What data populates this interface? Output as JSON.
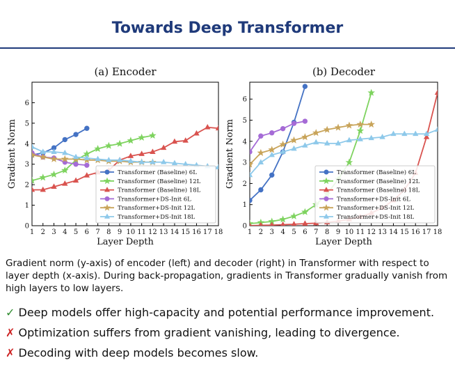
{
  "slide": {
    "title": "Towards Deep Transformer",
    "caption": "Gradient norm (y-axis) of encoder (left) and decoder (right) in Transformer with respect to layer depth (x-axis). During back-propagation, gradients in Transformer gradually vanish from high layers to low layers.",
    "bullets": [
      {
        "mark": "✓",
        "kind": "ok",
        "text": "Deep models offer high-capacity and potential performance improvement."
      },
      {
        "mark": "✗",
        "kind": "bad",
        "text": "Optimization suffers from gradient vanishing, leading to divergence."
      },
      {
        "mark": "✗",
        "kind": "bad",
        "text": "Decoding with deep models becomes slow."
      }
    ]
  },
  "colors": {
    "title": "#1f3a7a",
    "blue": "#4472c4",
    "green": "#7ed35f",
    "red": "#d9534f",
    "purple": "#a56bd6",
    "tan": "#c8a45a",
    "lightblue": "#8ec9ea"
  },
  "chart_data": [
    {
      "type": "line",
      "title": "(a) Encoder",
      "xlabel": "Layer Depth",
      "ylabel": "Gradient Norm",
      "xlim": [
        1,
        18
      ],
      "ylim": [
        0,
        7
      ],
      "xticks": [
        1,
        2,
        3,
        4,
        5,
        6,
        7,
        8,
        9,
        10,
        11,
        12,
        13,
        14,
        15,
        16,
        17,
        18
      ],
      "yticks": [
        0,
        1,
        2,
        3,
        4,
        5,
        6
      ],
      "legend_position": "lower-right",
      "series": [
        {
          "name": "Transformer (Baseline) 6L",
          "color": "#4472c4",
          "marker": "circle",
          "x": [
            1,
            2,
            3,
            4,
            5,
            6
          ],
          "values": [
            3.45,
            3.55,
            3.8,
            4.2,
            4.45,
            4.75
          ]
        },
        {
          "name": "Transformer (Baseline) 12L",
          "color": "#7ed35f",
          "marker": "star",
          "x": [
            1,
            2,
            3,
            4,
            5,
            6,
            7,
            8,
            9,
            10,
            11,
            12
          ],
          "values": [
            2.2,
            2.35,
            2.5,
            2.7,
            3.2,
            3.5,
            3.75,
            3.9,
            4.0,
            4.15,
            4.3,
            4.4
          ]
        },
        {
          "name": "Transformer (Baseline) 18L",
          "color": "#d9534f",
          "marker": "triangle",
          "x": [
            1,
            2,
            3,
            4,
            5,
            6,
            7,
            8,
            9,
            10,
            11,
            12,
            13,
            14,
            15,
            16,
            17,
            18
          ],
          "values": [
            1.75,
            1.75,
            1.9,
            2.05,
            2.2,
            2.45,
            2.6,
            2.7,
            3.2,
            3.4,
            3.5,
            3.6,
            3.8,
            4.1,
            4.15,
            4.5,
            4.8,
            4.75
          ]
        },
        {
          "name": "Transformer+DS-Init 6L",
          "color": "#a56bd6",
          "marker": "circle",
          "x": [
            1,
            2,
            3,
            4,
            5,
            6
          ],
          "values": [
            3.55,
            3.35,
            3.3,
            3.1,
            3.0,
            2.95
          ]
        },
        {
          "name": "Transformer+DS-Init 12L",
          "color": "#c8a45a",
          "marker": "star",
          "x": [
            1,
            2,
            3,
            4,
            5,
            6,
            7,
            8,
            9,
            10,
            11,
            12
          ],
          "values": [
            3.45,
            3.35,
            3.25,
            3.25,
            3.25,
            3.2,
            3.2,
            3.15,
            3.15,
            3.1,
            3.1,
            3.1
          ]
        },
        {
          "name": "Transformer+DS-Init 18L",
          "color": "#8ec9ea",
          "marker": "triangle",
          "x": [
            1,
            2,
            3,
            4,
            5,
            6,
            7,
            8,
            9,
            10,
            11,
            12,
            13,
            14,
            15,
            16,
            17,
            18
          ],
          "values": [
            3.85,
            3.6,
            3.6,
            3.55,
            3.35,
            3.3,
            3.25,
            3.2,
            3.2,
            3.15,
            3.1,
            3.1,
            3.1,
            3.05,
            3.0,
            2.95,
            2.9,
            2.85
          ]
        }
      ]
    },
    {
      "type": "line",
      "title": "(b) Decoder",
      "xlabel": "Layer Depth",
      "ylabel": "Gradient Norm",
      "xlim": [
        1,
        18
      ],
      "ylim": [
        0,
        6.8
      ],
      "xticks": [
        1,
        2,
        3,
        4,
        5,
        6,
        7,
        8,
        9,
        10,
        11,
        12,
        13,
        14,
        15,
        16,
        17,
        18
      ],
      "yticks": [
        0,
        1,
        2,
        3,
        4,
        5,
        6
      ],
      "legend_position": "lower-right",
      "series": [
        {
          "name": "Transformer (Baseline) 6L",
          "color": "#4472c4",
          "marker": "circle",
          "x": [
            1,
            2,
            3,
            4,
            5,
            6
          ],
          "values": [
            1.2,
            1.7,
            2.4,
            3.5,
            4.9,
            6.6
          ]
        },
        {
          "name": "Transformer (Baseline) 12L",
          "color": "#7ed35f",
          "marker": "star",
          "x": [
            1,
            2,
            3,
            4,
            5,
            6,
            7,
            8,
            9,
            10,
            11,
            12
          ],
          "values": [
            0.1,
            0.15,
            0.2,
            0.3,
            0.45,
            0.65,
            1.0,
            1.5,
            2.2,
            3.0,
            4.5,
            6.3
          ]
        },
        {
          "name": "Transformer (Baseline) 18L",
          "color": "#d9534f",
          "marker": "triangle",
          "x": [
            1,
            2,
            3,
            4,
            5,
            6,
            7,
            8,
            9,
            10,
            11,
            12,
            13,
            14,
            15,
            16,
            17,
            18
          ],
          "values": [
            0.0,
            0.02,
            0.03,
            0.05,
            0.07,
            0.1,
            0.12,
            0.16,
            0.22,
            0.3,
            0.42,
            0.6,
            0.85,
            1.2,
            1.7,
            2.5,
            4.2,
            6.3
          ]
        },
        {
          "name": "Transformer+DS-Init 6L",
          "color": "#a56bd6",
          "marker": "circle",
          "x": [
            1,
            2,
            3,
            4,
            5,
            6
          ],
          "values": [
            3.5,
            4.25,
            4.4,
            4.6,
            4.85,
            4.95
          ]
        },
        {
          "name": "Transformer+DS-Init 12L",
          "color": "#c8a45a",
          "marker": "star",
          "x": [
            1,
            2,
            3,
            4,
            5,
            6,
            7,
            8,
            9,
            10,
            11,
            12
          ],
          "values": [
            2.9,
            3.45,
            3.6,
            3.85,
            4.05,
            4.2,
            4.4,
            4.55,
            4.65,
            4.75,
            4.8,
            4.8
          ]
        },
        {
          "name": "Transformer+DS-Init 18L",
          "color": "#8ec9ea",
          "marker": "triangle",
          "x": [
            1,
            2,
            3,
            4,
            5,
            6,
            7,
            8,
            9,
            10,
            11,
            12,
            13,
            14,
            15,
            16,
            17,
            18
          ],
          "values": [
            2.4,
            3.0,
            3.35,
            3.5,
            3.65,
            3.8,
            3.95,
            3.9,
            3.9,
            4.05,
            4.1,
            4.15,
            4.2,
            4.35,
            4.35,
            4.35,
            4.35,
            4.55
          ]
        }
      ]
    }
  ]
}
